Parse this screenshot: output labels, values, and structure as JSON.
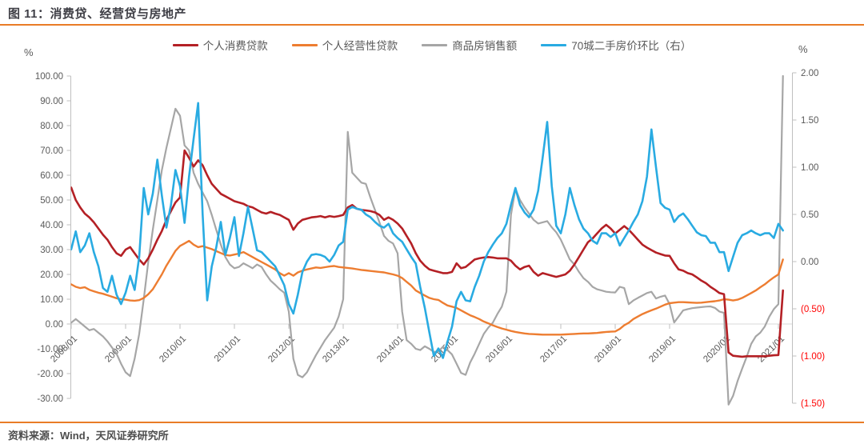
{
  "header": {
    "title": "图 11：消费贷、经营贷与房地产"
  },
  "footer": {
    "source": "资料来源：Wind，天风证券研究所"
  },
  "colors": {
    "accent_rule": "#E97C26",
    "title_text": "#3F3F46",
    "legend_text": "#595959",
    "axis_text": "#595959",
    "axis_negative_text": "#FF0000",
    "axis_line": "#BFBFBF",
    "zero_gridline": "#D9D9D9",
    "consumer_loans": "#B42025",
    "business_loans": "#ED7D31",
    "housing_sales": "#A6A6A6",
    "home_price": "#29ABE2"
  },
  "legend": {
    "items": [
      {
        "id": "consumer-loans",
        "label": "个人消费贷款",
        "color": "#B42025"
      },
      {
        "id": "business-loans",
        "label": "个人经营性贷款",
        "color": "#ED7D31"
      },
      {
        "id": "housing-sales",
        "label": "商品房销售额",
        "color": "#A6A6A6"
      },
      {
        "id": "home-price",
        "label": "70城二手房价环比（右）",
        "color": "#29ABE2"
      }
    ]
  },
  "chart_data": {
    "type": "line",
    "title": "消费贷、经营贷与房地产",
    "legend_position": "top",
    "grid": "zero-line-only",
    "x_axis": {
      "start_year": 2008,
      "months_per_point": 1,
      "tick_years": [
        2008,
        2009,
        2010,
        2011,
        2012,
        2013,
        2014,
        2015,
        2016,
        2017,
        2018,
        2019,
        2020,
        2021
      ],
      "tick_labels": [
        "2008/01",
        "2009/01",
        "2010/01",
        "2011/01",
        "2012/01",
        "2013/01",
        "2014/01",
        "2015/01",
        "2016/01",
        "2017/01",
        "2018/01",
        "2019/01",
        "2020/01",
        "2021/01"
      ]
    },
    "y_left": {
      "unit": "%",
      "min": -30,
      "max": 100,
      "ticks": [
        100,
        90,
        80,
        70,
        60,
        50,
        40,
        30,
        20,
        10,
        0,
        -10,
        -20,
        -30
      ]
    },
    "y_right": {
      "unit": "%",
      "min": -1.5,
      "max": 2,
      "ticks": [
        2,
        1.5,
        1,
        0.5,
        0,
        -0.5,
        -1,
        -1.5
      ]
    },
    "series": [
      {
        "id": "consumer-loans",
        "name": "个人消费贷款",
        "axis": "left",
        "color": "#B42025",
        "start": "2008/01",
        "monthly_values": [
          55,
          50,
          47,
          44.5,
          43,
          41,
          38.5,
          36,
          34,
          31,
          28.5,
          27.5,
          30,
          31,
          28.5,
          26,
          24,
          26.5,
          30,
          34,
          37.5,
          42,
          45.5,
          49,
          51,
          70,
          67,
          63.5,
          66,
          64,
          60,
          56.5,
          54.5,
          52.5,
          51.5,
          50.5,
          49.5,
          49,
          48.5,
          47.5,
          47,
          46,
          45,
          44.5,
          45.2,
          44.5,
          44,
          43,
          42,
          38,
          40.5,
          42,
          42.5,
          43,
          43.2,
          43.5,
          43,
          43.5,
          43.2,
          43.5,
          44,
          47,
          48,
          46.5,
          46,
          45.8,
          45.5,
          45,
          44,
          42,
          43,
          42,
          40.5,
          38.5,
          35.5,
          32.5,
          28.5,
          25.5,
          23.5,
          22,
          21.5,
          21,
          20.5,
          20.5,
          21,
          24.5,
          22.5,
          23,
          24.5,
          26,
          26.5,
          26.8,
          27,
          26.8,
          26.5,
          26.5,
          26.5,
          25.5,
          23.5,
          22,
          23,
          23.5,
          21,
          19.5,
          20.5,
          20,
          19.5,
          19,
          19.5,
          20,
          21.5,
          24,
          27,
          30,
          33,
          34.5,
          36.5,
          38.5,
          40,
          38.5,
          36.5,
          38,
          39.5,
          38,
          36,
          34,
          32,
          30.8,
          29.8,
          28.8,
          28.2,
          27.6,
          27.5,
          24.5,
          22,
          21.5,
          20.5,
          20,
          18.8,
          17.5,
          16.5,
          15,
          13.8,
          12.5,
          12,
          -11.5,
          -12.8,
          -13,
          -13.2,
          -13,
          -13,
          -13,
          -13,
          -13,
          -12.8,
          -12.6,
          -12.5,
          13.5
        ]
      },
      {
        "id": "business-loans",
        "name": "个人经营性贷款",
        "axis": "left",
        "color": "#ED7D31",
        "start": "2008/01",
        "monthly_values": [
          16,
          15,
          14.5,
          14.8,
          13.8,
          13.2,
          12.6,
          12.2,
          11.6,
          11,
          10.4,
          10,
          9.8,
          9.5,
          9.4,
          9.6,
          10.5,
          12,
          14,
          17,
          20,
          23.5,
          26.5,
          29.5,
          31.5,
          32.5,
          33.5,
          32,
          31,
          31.4,
          30.8,
          30.2,
          29.4,
          28.6,
          27.8,
          27.6,
          28,
          28.4,
          29,
          28,
          27,
          26,
          25,
          24,
          23,
          22,
          20.5,
          19.5,
          20.5,
          19.5,
          20.8,
          21.5,
          22,
          22.4,
          22.8,
          22.6,
          22.9,
          23.2,
          23.4,
          23,
          22.8,
          22.6,
          22.4,
          22.1,
          21.8,
          21.6,
          21.4,
          21.2,
          21,
          20.8,
          20.4,
          20,
          19.5,
          18.5,
          17,
          15.5,
          13.5,
          12.5,
          11.5,
          10.5,
          10,
          9.7,
          8.5,
          7.5,
          7,
          6.5,
          5.5,
          4.5,
          3.5,
          2.8,
          2,
          1,
          0.3,
          -0.5,
          -1.2,
          -1.8,
          -2.3,
          -2.8,
          -3.2,
          -3.5,
          -3.8,
          -4,
          -4.1,
          -4.2,
          -4.3,
          -4.3,
          -4.3,
          -4.3,
          -4.3,
          -4.2,
          -4.1,
          -4,
          -3.9,
          -3.8,
          -3.8,
          -3.7,
          -3.6,
          -3.4,
          -3.2,
          -3.1,
          -3,
          -2,
          -0.5,
          0.5,
          2,
          3,
          4,
          4.8,
          5.5,
          6.2,
          7,
          7.8,
          8.4,
          8.6,
          8.8,
          8.8,
          8.7,
          8.6,
          8.5,
          8.6,
          8.8,
          9,
          9.2,
          9.5,
          10,
          9.8,
          9.5,
          9.8,
          10.5,
          11.5,
          12.5,
          13.5,
          14.8,
          16,
          17.5,
          18.8,
          20,
          26
        ]
      },
      {
        "id": "housing-sales",
        "name": "商品房销售额",
        "axis": "left",
        "color": "#A6A6A6",
        "start": "2008/01",
        "monthly_values": [
          0.5,
          2,
          0.5,
          -1,
          -2.5,
          -2,
          -3.5,
          -5,
          -7,
          -9.5,
          -12,
          -16,
          -19.5,
          -21,
          -14,
          -4,
          10,
          25,
          38,
          50,
          62,
          71,
          79,
          86.8,
          84,
          72,
          70,
          61,
          56.5,
          53,
          49.5,
          44,
          38,
          32,
          27,
          24,
          22.5,
          23,
          24.5,
          23.5,
          22.5,
          24,
          23,
          20,
          17.5,
          15.8,
          14,
          12.6,
          5,
          -14,
          -20.5,
          -21.5,
          -19.5,
          -16,
          -12.5,
          -9.5,
          -6.5,
          -4,
          -1.5,
          3,
          10,
          77.5,
          61,
          59,
          57,
          56.5,
          51,
          46,
          41,
          35.5,
          33.5,
          32.5,
          28.5,
          5,
          -6.5,
          -8,
          -10,
          -10.5,
          -9,
          -10,
          -11.3,
          -11,
          -9.2,
          -10.5,
          -12.3,
          -16,
          -19.7,
          -20.5,
          -15.5,
          -12,
          -8,
          -4,
          -1.5,
          0.5,
          4,
          7,
          13,
          44,
          54.5,
          50,
          47,
          44.5,
          42,
          40.5,
          41,
          41.5,
          39,
          37,
          34,
          30,
          26,
          24,
          21,
          18.5,
          17,
          15,
          14,
          13.5,
          13,
          12.8,
          12.7,
          15,
          14.5,
          8,
          9.5,
          10.5,
          11.5,
          12.5,
          13,
          10.3,
          11,
          11.5,
          8,
          0.6,
          3,
          5.5,
          6,
          6.4,
          6.6,
          6.8,
          7,
          7.1,
          6.5,
          5,
          4.5,
          -32.5,
          -29,
          -23,
          -18,
          -13.3,
          -8,
          -5,
          -3.5,
          -1,
          3,
          6,
          8,
          100
        ]
      },
      {
        "id": "home-price-mom",
        "name": "70城二手房价环比（右）",
        "axis": "right",
        "color": "#29ABE2",
        "start": "2008/01",
        "monthly_values": [
          0.13,
          0.32,
          0.1,
          0.17,
          0.3,
          0.1,
          -0.05,
          -0.28,
          -0.32,
          -0.15,
          -0.35,
          -0.45,
          -0.33,
          -0.15,
          -0.3,
          0.05,
          0.78,
          0.5,
          0.72,
          1.08,
          0.7,
          0.36,
          0.6,
          0.97,
          0.8,
          0.41,
          0.9,
          1.3,
          1.68,
          0.5,
          -0.41,
          -0.05,
          0.15,
          0.42,
          0.07,
          0.25,
          0.47,
          0.06,
          0.3,
          0.58,
          0.35,
          0.12,
          0.1,
          0.05,
          0,
          -0.05,
          -0.15,
          -0.25,
          -0.45,
          -0.55,
          -0.35,
          -0.11,
          0,
          0.07,
          0.08,
          0.07,
          0.05,
          0,
          0.07,
          0.17,
          0.21,
          0.55,
          0.58,
          0.56,
          0.55,
          0.5,
          0.47,
          0.42,
          0.38,
          0.36,
          0.4,
          0.3,
          0.25,
          0.21,
          0.13,
          0.05,
          -0.02,
          -0.27,
          -0.49,
          -0.75,
          -1,
          -0.92,
          -1.02,
          -0.85,
          -0.69,
          -0.42,
          -0.32,
          -0.41,
          -0.42,
          -0.27,
          -0.15,
          0,
          0.1,
          0.18,
          0.25,
          0.3,
          0.4,
          0.6,
          0.78,
          0.6,
          0.52,
          0.47,
          0.55,
          0.75,
          1.1,
          1.48,
          0.8,
          0.38,
          0.3,
          0.5,
          0.78,
          0.6,
          0.45,
          0.35,
          0.3,
          0.22,
          0.19,
          0.3,
          0.3,
          0.26,
          0.3,
          0.17,
          0.25,
          0.33,
          0.42,
          0.5,
          0.64,
          0.9,
          1.4,
          1,
          0.62,
          0.57,
          0.55,
          0.42,
          0.48,
          0.51,
          0.45,
          0.38,
          0.31,
          0.28,
          0.27,
          0.2,
          0.2,
          0.1,
          0.1,
          -0.1,
          0.05,
          0.2,
          0.28,
          0.3,
          0.33,
          0.3,
          0.28,
          0.3,
          0.3,
          0.25,
          0.4,
          0.33
        ]
      }
    ]
  }
}
